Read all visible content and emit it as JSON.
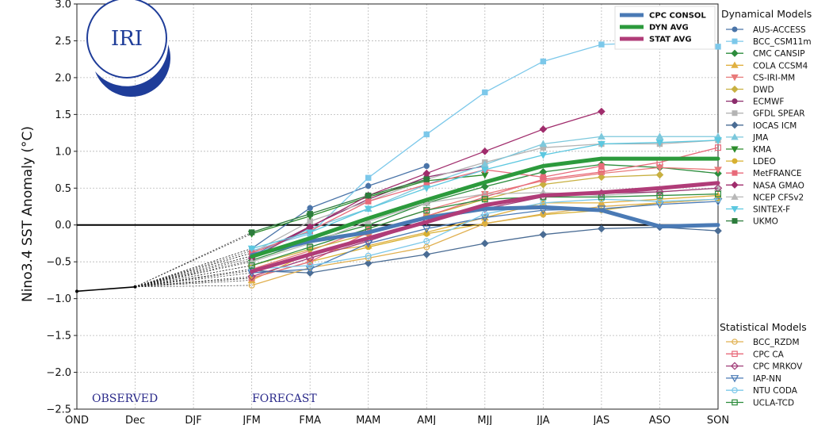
{
  "chart_data": {
    "type": "line",
    "title": "",
    "ylabel": "Nino3.4 SST Anomaly (°C)",
    "xlabel": "",
    "ylim": [
      -2.5,
      3.0
    ],
    "yticks": [
      -2.5,
      -2.0,
      -1.5,
      -1.0,
      -0.5,
      0.0,
      0.5,
      1.0,
      1.5,
      2.0,
      2.5,
      3.0
    ],
    "ytick_labels": [
      "−2.5",
      "−2.0",
      "−1.5",
      "−1.0",
      "−0.5",
      "0.0",
      "0.5",
      "1.0",
      "1.5",
      "2.0",
      "2.5",
      "3.0"
    ],
    "categories": [
      "OND",
      "Dec",
      "DJF",
      "JFM",
      "FMA",
      "MAM",
      "AMJ",
      "MJJ",
      "JJA",
      "JAS",
      "ASO",
      "SON"
    ],
    "grid": true,
    "logo": "IRI",
    "annotations": {
      "observed": "OBSERVED",
      "forecast": "FORECAST"
    },
    "observed": {
      "x": [
        "OND",
        "Dec"
      ],
      "values": [
        -0.9,
        -0.84
      ]
    },
    "averages_legend_position": "top-center",
    "averages": [
      {
        "name": "CPC CONSOL",
        "color": "#4a7ab5",
        "values": [
          null,
          null,
          null,
          -0.41,
          -0.22,
          -0.1,
          0.1,
          0.22,
          0.24,
          0.2,
          -0.02,
          0.0
        ]
      },
      {
        "name": "DYN AVG",
        "color": "#2c9a3c",
        "values": [
          null,
          null,
          null,
          -0.43,
          -0.18,
          0.09,
          0.34,
          0.58,
          0.8,
          0.9,
          0.9,
          0.9
        ]
      },
      {
        "name": "STAT AVG",
        "color": "#b03c78",
        "values": [
          null,
          null,
          null,
          -0.63,
          -0.4,
          -0.18,
          0.04,
          0.27,
          0.4,
          0.44,
          0.5,
          0.57
        ]
      }
    ],
    "dynamical_models_title": "Dynamical Models",
    "dynamical_models": [
      {
        "name": "AUS-ACCESS",
        "color": "#4a74a8",
        "marker": "circle",
        "values": [
          null,
          null,
          null,
          -0.32,
          0.23,
          0.53,
          0.8,
          null,
          null,
          null,
          null,
          null
        ]
      },
      {
        "name": "BCC_CSM11m",
        "color": "#7cc8ea",
        "marker": "square",
        "values": [
          null,
          null,
          null,
          -0.35,
          -0.12,
          0.64,
          1.23,
          1.8,
          2.22,
          2.45,
          2.48,
          2.42
        ]
      },
      {
        "name": "CMC CANSIP",
        "color": "#2c8c3c",
        "marker": "diamond",
        "values": [
          null,
          null,
          null,
          -0.48,
          -0.22,
          0.0,
          0.3,
          0.52,
          0.72,
          0.82,
          0.78,
          0.7
        ]
      },
      {
        "name": "COLA CCSM4",
        "color": "#e0b040",
        "marker": "triangle-up",
        "values": [
          null,
          null,
          null,
          -0.75,
          -0.38,
          -0.28,
          -0.1,
          0.1,
          0.3,
          0.3,
          0.35,
          0.4
        ]
      },
      {
        "name": "CS-IRI-MM",
        "color": "#e87a7a",
        "marker": "triangle-down",
        "values": [
          null,
          null,
          null,
          -0.6,
          -0.35,
          -0.05,
          0.2,
          0.42,
          0.6,
          0.7,
          0.78,
          0.75
        ]
      },
      {
        "name": "DWD",
        "color": "#c8b040",
        "marker": "diamond",
        "values": [
          null,
          null,
          null,
          -0.55,
          -0.33,
          -0.12,
          0.12,
          0.35,
          0.55,
          0.65,
          0.68,
          null
        ]
      },
      {
        "name": "ECMWF",
        "color": "#8c2c6c",
        "marker": "circle",
        "values": [
          null,
          null,
          null,
          -0.42,
          -0.02,
          0.35,
          0.65,
          0.8,
          null,
          null,
          null,
          null
        ]
      },
      {
        "name": "GFDL SPEAR",
        "color": "#b4b4b4",
        "marker": "square",
        "values": [
          null,
          null,
          null,
          -0.38,
          0.05,
          0.32,
          0.62,
          0.85,
          1.05,
          1.1,
          1.1,
          1.15
        ]
      },
      {
        "name": "IOCAS ICM",
        "color": "#4a6c94",
        "marker": "diamond",
        "values": [
          null,
          null,
          null,
          -0.62,
          -0.65,
          -0.52,
          -0.4,
          -0.25,
          -0.13,
          -0.05,
          -0.03,
          -0.08
        ]
      },
      {
        "name": "JMA",
        "color": "#7cc8dc",
        "marker": "triangle-up",
        "values": [
          null,
          null,
          null,
          -0.42,
          -0.05,
          0.22,
          0.55,
          0.82,
          1.1,
          1.2,
          1.2,
          1.2
        ]
      },
      {
        "name": "KMA",
        "color": "#2c8c2c",
        "marker": "triangle-down",
        "values": [
          null,
          null,
          null,
          -0.12,
          0.12,
          0.38,
          0.6,
          0.68,
          null,
          null,
          null,
          null
        ]
      },
      {
        "name": "LDEO",
        "color": "#d8b030",
        "marker": "circle",
        "values": [
          null,
          null,
          null,
          -0.72,
          -0.5,
          -0.3,
          -0.12,
          0.02,
          0.14,
          0.2,
          0.3,
          0.35
        ]
      },
      {
        "name": "MetFRANCE",
        "color": "#e86a7a",
        "marker": "square",
        "values": [
          null,
          null,
          null,
          -0.38,
          -0.08,
          0.32,
          0.55,
          0.75,
          0.65,
          0.8,
          null,
          null
        ]
      },
      {
        "name": "NASA GMAO",
        "color": "#a02c6c",
        "marker": "diamond",
        "values": [
          null,
          null,
          null,
          -0.45,
          -0.03,
          0.4,
          0.7,
          1.0,
          1.3,
          1.54,
          null,
          null
        ]
      },
      {
        "name": "NCEP CFSv2",
        "color": "#b8b8b8",
        "marker": "triangle-up",
        "values": [
          null,
          null,
          null,
          -0.5,
          -0.25,
          0.05,
          0.3,
          0.42,
          0.44,
          0.4,
          0.45,
          0.5
        ]
      },
      {
        "name": "SINTEX-F",
        "color": "#5cc8e0",
        "marker": "triangle-down",
        "values": [
          null,
          null,
          null,
          -0.32,
          -0.1,
          0.22,
          0.5,
          0.75,
          0.95,
          1.1,
          1.12,
          1.15
        ]
      },
      {
        "name": "UKMO",
        "color": "#2c7c3c",
        "marker": "square",
        "values": [
          null,
          null,
          null,
          -0.1,
          0.15,
          0.4,
          0.62,
          null,
          null,
          null,
          null,
          null
        ]
      }
    ],
    "statistical_models_title": "Statistical Models",
    "statistical_models": [
      {
        "name": "BCC_RZDM",
        "color": "#e0b050",
        "marker": "circle-open",
        "values": [
          null,
          null,
          null,
          -0.82,
          -0.58,
          -0.45,
          -0.3,
          0.02,
          0.15,
          0.25,
          0.3,
          0.35
        ]
      },
      {
        "name": "CPC CA",
        "color": "#e86a7a",
        "marker": "square-open",
        "values": [
          null,
          null,
          null,
          -0.72,
          -0.5,
          -0.1,
          0.12,
          0.38,
          0.62,
          0.72,
          0.85,
          1.05
        ]
      },
      {
        "name": "CPC MRKOV",
        "color": "#a03c78",
        "marker": "diamond-open",
        "values": [
          null,
          null,
          null,
          -0.7,
          -0.45,
          -0.22,
          0.05,
          0.22,
          0.38,
          0.43,
          0.45,
          0.5
        ]
      },
      {
        "name": "IAP-NN",
        "color": "#4a7ab5",
        "marker": "triangle-down-open",
        "values": [
          null,
          null,
          null,
          -0.65,
          -0.6,
          -0.25,
          -0.05,
          0.1,
          0.2,
          0.22,
          0.28,
          0.32
        ]
      },
      {
        "name": "NTU CODA",
        "color": "#7cc8ea",
        "marker": "circle-open",
        "values": [
          null,
          null,
          null,
          -0.6,
          -0.55,
          -0.42,
          -0.22,
          0.15,
          0.3,
          0.35,
          0.32,
          0.35
        ]
      },
      {
        "name": "UCLA-TCD",
        "color": "#2c8c3c",
        "marker": "square-open",
        "values": [
          null,
          null,
          null,
          -0.55,
          -0.3,
          -0.05,
          0.2,
          0.35,
          0.38,
          0.38,
          0.4,
          0.42
        ]
      }
    ]
  }
}
